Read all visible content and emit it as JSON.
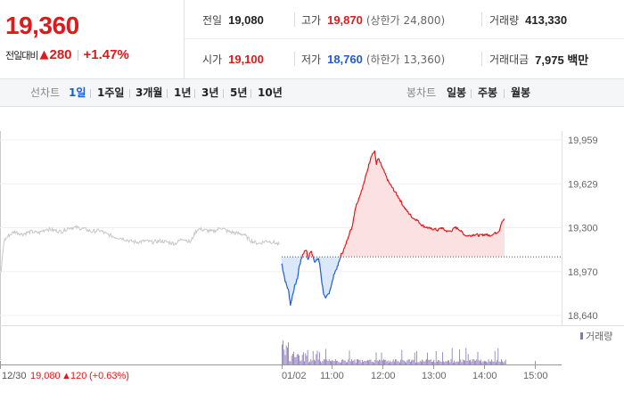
{
  "header": {
    "price": "19,360",
    "change_label": "전일대비",
    "change_arrow": "▲",
    "change_value": "280",
    "change_pct": "+1.47%"
  },
  "stats": {
    "prev_close": {
      "label": "전일",
      "value": "19,080"
    },
    "high": {
      "label": "고가",
      "value": "19,870",
      "extra": "(상한가 24,800)"
    },
    "volume": {
      "label": "거래량",
      "value": "413,330"
    },
    "open": {
      "label": "시가",
      "value": "19,100"
    },
    "low": {
      "label": "저가",
      "value": "18,760",
      "extra": "(하한가 13,360)"
    },
    "amount": {
      "label": "거래대금",
      "value": "7,975 백만"
    }
  },
  "toolbar": {
    "line_label": "선차트",
    "line_periods": [
      "1일",
      "1주일",
      "3개월",
      "1년",
      "3년",
      "5년",
      "10년"
    ],
    "active_period": "1일",
    "candle_label": "봉차트",
    "candle_periods": [
      "일봉",
      "주봉",
      "월봉"
    ]
  },
  "chart_data": {
    "type": "line",
    "y_ticks": [
      "19,959",
      "19,629",
      "19,300",
      "18,970",
      "18,640"
    ],
    "x_ticks": [
      "01/02",
      "11:00",
      "12:00",
      "13:00",
      "14:00",
      "15:00"
    ],
    "prev_close": 19080,
    "volume_legend": "거래량",
    "footer": {
      "date": "12/30",
      "close": "19,080",
      "arrow": "▲",
      "change": "120",
      "pct": "(+0.63%)"
    },
    "colors": {
      "up": "#e0191b",
      "down": "#1d5bd6",
      "prev": "#c7c7c7",
      "volume": "#8a74b8",
      "fill_up": "#fbe1e1",
      "fill_down": "#dbe7fa"
    }
  }
}
